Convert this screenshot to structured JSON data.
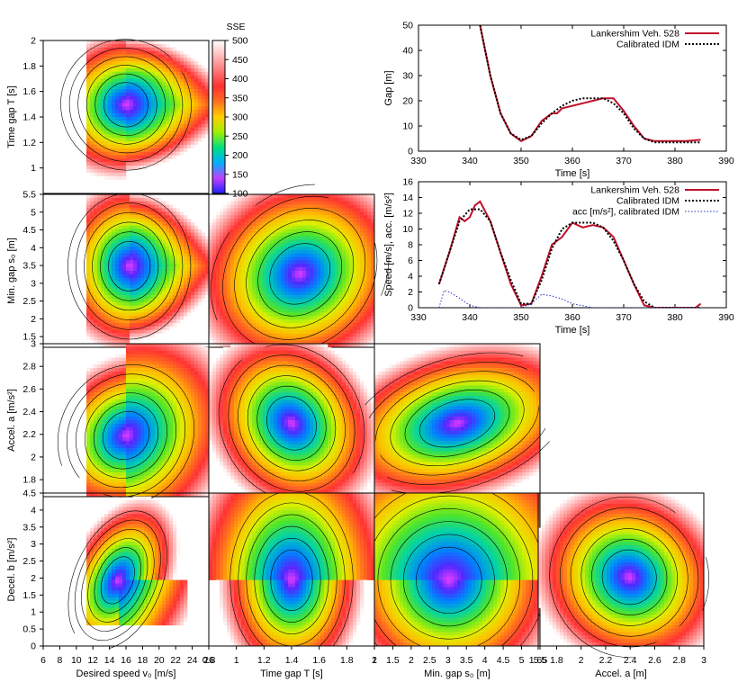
{
  "chart_data": [
    {
      "type": "heatmap",
      "id": "matrix",
      "colorbar": {
        "title": "SSE",
        "ticks": [
          100,
          150,
          200,
          250,
          300,
          350,
          400,
          450,
          500
        ],
        "range": [
          100,
          500
        ],
        "colors": [
          "#2020ff",
          "#00a0ff",
          "#00d0a0",
          "#40e040",
          "#c0f000",
          "#ffd000",
          "#ff8020",
          "#ff3030",
          "#ff9090",
          "#ffe0e0",
          "#ffffff"
        ]
      },
      "params": [
        {
          "key": "v0",
          "label": "Desired speed v",
          "sub": "0",
          "unit": " [m/s]",
          "range": [
            6,
            26
          ],
          "ticks": [
            "6",
            "8",
            "10",
            "12",
            "14",
            "16",
            "18",
            "20",
            "22",
            "24",
            "26"
          ]
        },
        {
          "key": "T",
          "label": "Time gap T [s]",
          "sub": "",
          "unit": "",
          "range": [
            0.8,
            2.0
          ],
          "ticks": [
            "0.8",
            "1",
            "1.2",
            "1.4",
            "1.6",
            "1.8",
            "2"
          ]
        },
        {
          "key": "s0",
          "label": "Min. gap s",
          "sub": "0",
          "unit": " [m]",
          "range": [
            1,
            5.5
          ],
          "ticks": [
            "1",
            "1.5",
            "2",
            "2.5",
            "3",
            "3.5",
            "4",
            "4.5",
            "5",
            "5.5"
          ]
        },
        {
          "key": "a",
          "label": "Accel. a [m]",
          "sub": "",
          "unit": "",
          "range": [
            1.65,
            3.0
          ],
          "ticks": [
            "1.65",
            "1.8",
            "2",
            "2.2",
            "2.4",
            "2.6",
            "2.8",
            "3"
          ]
        }
      ],
      "rows": [
        {
          "key": "T",
          "label": "Time gap T [s]",
          "ticks": [
            "1",
            "1.2",
            "1.4",
            "1.6",
            "1.8",
            "2"
          ],
          "range": [
            0.8,
            2.0
          ]
        },
        {
          "key": "s0",
          "label": "Min. gap s₀ [m]",
          "ticks": [
            "1.5",
            "2",
            "2.5",
            "3",
            "3.5",
            "4",
            "4.5",
            "5",
            "5.5"
          ],
          "range": [
            1.2,
            5.5
          ]
        },
        {
          "key": "a",
          "label": "Accel. a [m/s²]",
          "ticks": [
            "1.8",
            "2",
            "2.2",
            "2.4",
            "2.6",
            "2.8",
            "3"
          ],
          "range": [
            1.65,
            3.0
          ]
        },
        {
          "key": "b",
          "label": "Decel. b [m/s²]",
          "ticks": [
            "0",
            "0.5",
            "1",
            "1.5",
            "2",
            "2.5",
            "3",
            "3.5",
            "4",
            "4.5"
          ],
          "range": [
            0,
            4.5
          ]
        }
      ],
      "optimum": {
        "v0": 16.3,
        "T": 1.38,
        "s0": 3.3,
        "a": 2.3,
        "b": 2.1
      }
    },
    {
      "type": "line",
      "id": "gap",
      "xlabel": "Time [s]",
      "ylabel": "Gap [m]",
      "xlim": [
        330,
        390
      ],
      "ylim": [
        0,
        50
      ],
      "xticks": [
        330,
        340,
        350,
        360,
        370,
        380,
        390
      ],
      "yticks": [
        0,
        10,
        20,
        30,
        40,
        50
      ],
      "series": [
        {
          "name": "Lankershim Veh. 528",
          "color": "#c0102a",
          "dash": "",
          "width": 2,
          "x": [
            342,
            344,
            346,
            348,
            350,
            352,
            354,
            356,
            357,
            358,
            360,
            362,
            364,
            366,
            368,
            370,
            372,
            374,
            376,
            378,
            380,
            382,
            385
          ],
          "y": [
            50,
            30,
            15,
            7,
            4,
            6,
            12,
            15,
            15,
            17,
            18,
            19,
            20,
            21,
            21,
            16,
            10,
            5,
            4,
            4,
            4,
            4,
            4.5
          ]
        },
        {
          "name": "Calibrated IDM",
          "color": "#000000",
          "dash": "2,2",
          "width": 2,
          "x": [
            342,
            344,
            346,
            348,
            350,
            352,
            354,
            356,
            358,
            360,
            362,
            364,
            366,
            368,
            370,
            372,
            374,
            376,
            378,
            380,
            382,
            385
          ],
          "y": [
            50,
            30,
            15,
            7,
            4.5,
            6,
            11,
            15,
            18,
            20,
            21,
            21,
            21,
            19,
            15,
            9,
            5,
            3.5,
            3.5,
            3.5,
            3.5,
            3.5
          ]
        }
      ]
    },
    {
      "type": "line",
      "id": "speed",
      "xlabel": "Time [s]",
      "ylabel": "Speed [m/s], acc. [m/s²]",
      "xlim": [
        330,
        390
      ],
      "ylim": [
        0,
        16
      ],
      "xticks": [
        330,
        340,
        350,
        360,
        370,
        380,
        390
      ],
      "yticks": [
        0,
        2,
        4,
        6,
        8,
        10,
        12,
        14,
        16
      ],
      "series": [
        {
          "name": "Lankershim Veh. 528",
          "color": "#c0102a",
          "dash": "",
          "width": 2,
          "x": [
            334,
            336,
            338,
            339,
            340,
            341,
            342,
            344,
            346,
            348,
            350,
            352,
            354,
            356,
            358,
            360,
            362,
            364,
            366,
            368,
            370,
            372,
            374,
            376,
            380,
            384,
            385
          ],
          "y": [
            3,
            7,
            11.5,
            11,
            11.5,
            13,
            13.5,
            11,
            7,
            3,
            0.3,
            0.5,
            4,
            8,
            9,
            10.8,
            10.2,
            10.5,
            10.2,
            9,
            6,
            3,
            0.3,
            0,
            0,
            0,
            0.5
          ]
        },
        {
          "name": "Calibrated IDM",
          "color": "#000000",
          "dash": "2,2",
          "width": 2,
          "x": [
            334,
            336,
            338,
            340,
            342,
            344,
            346,
            348,
            350,
            352,
            354,
            356,
            358,
            360,
            362,
            364,
            366,
            368,
            370,
            372,
            374,
            376,
            380,
            385
          ],
          "y": [
            3,
            7,
            11,
            12.5,
            12.5,
            11,
            7,
            3.5,
            0.5,
            0.5,
            3.5,
            7.5,
            10,
            10.8,
            10.8,
            10.8,
            10.2,
            8.5,
            6,
            3,
            0.8,
            0,
            0,
            0
          ]
        },
        {
          "name": "acc [m/s²], calibrated IDM",
          "color": "#2030c0",
          "dash": "1.5,2",
          "width": 1,
          "x": [
            334,
            335,
            336,
            338,
            340,
            342,
            346,
            350,
            352,
            354,
            356,
            358,
            360,
            364,
            370,
            375,
            385
          ],
          "y": [
            0,
            2.2,
            2,
            1.2,
            0.3,
            0,
            0,
            0,
            0.5,
            1.7,
            1.5,
            1.1,
            0.5,
            0,
            0,
            0,
            0
          ]
        }
      ]
    }
  ]
}
